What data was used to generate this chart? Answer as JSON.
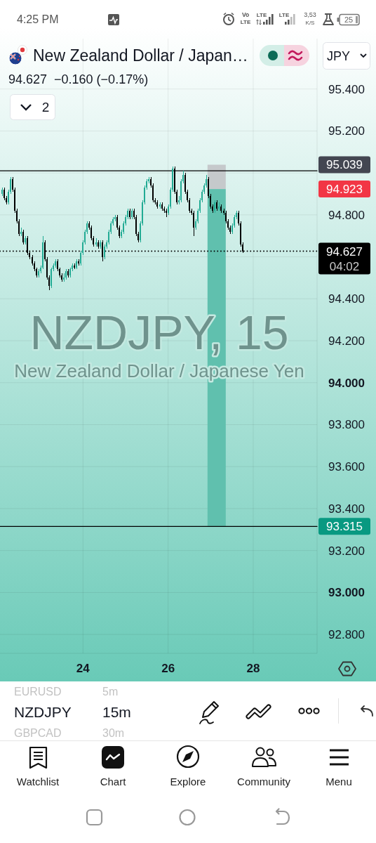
{
  "chart_data": {
    "type": "candlestick",
    "title": "New Zealand Dollar / Japan…",
    "subtitle": "94.627  −0.160 (−0.17%)",
    "x": [
      22.1,
      22.15,
      22.2,
      22.25,
      22.3,
      22.35,
      22.4,
      22.45,
      22.5,
      22.55,
      22.6,
      22.65,
      22.7,
      22.75,
      22.8,
      22.85,
      22.9,
      22.95,
      23,
      23.05,
      23.1,
      23.15,
      23.2,
      23.25,
      23.3,
      23.35,
      23.4,
      23.45,
      23.5,
      23.55,
      23.6,
      23.65,
      23.7,
      23.75,
      23.8,
      23.85,
      23.9,
      23.95,
      24,
      24.05,
      24.1,
      24.15,
      24.2,
      24.25,
      24.3,
      24.35,
      24.4,
      24.45,
      24.5,
      24.55,
      24.6,
      24.65,
      24.7,
      24.75,
      24.8,
      24.85,
      24.9,
      24.95,
      25,
      25.05,
      25.1,
      25.15,
      25.2,
      25.25,
      25.3,
      25.35,
      25.4,
      25.45,
      25.5,
      25.55,
      25.6,
      25.65,
      25.7,
      25.75,
      25.8,
      25.85,
      25.9,
      25.95,
      26,
      26.05,
      26.1,
      26.15,
      26.2,
      26.25,
      26.3,
      26.35,
      26.4,
      26.45,
      26.5,
      26.55,
      26.6,
      26.65,
      26.7,
      26.75,
      26.8,
      26.85,
      26.9,
      26.95,
      27,
      27.05,
      27.1,
      27.15,
      27.2,
      27.25,
      27.3,
      27.35,
      27.4,
      27.45,
      27.5,
      27.55,
      27.6,
      27.65,
      27.7,
      27.75
    ],
    "ohlc": [
      [
        94.9,
        94.93,
        94.89,
        94.92
      ],
      [
        94.92,
        94.93,
        94.87,
        94.88
      ],
      [
        94.88,
        94.89,
        94.85,
        94.86
      ],
      [
        94.86,
        94.92,
        94.85,
        94.91
      ],
      [
        94.91,
        94.98,
        94.9,
        94.97
      ],
      [
        94.97,
        94.98,
        94.91,
        94.92
      ],
      [
        94.92,
        94.93,
        94.81,
        94.82
      ],
      [
        94.82,
        94.83,
        94.76,
        94.77
      ],
      [
        94.77,
        94.78,
        94.7,
        94.71
      ],
      [
        94.71,
        94.74,
        94.7,
        94.72
      ],
      [
        94.72,
        94.73,
        94.66,
        94.67
      ],
      [
        94.67,
        94.7,
        94.66,
        94.69
      ],
      [
        94.69,
        94.7,
        94.61,
        94.62
      ],
      [
        94.62,
        94.63,
        94.59,
        94.6
      ],
      [
        94.6,
        94.61,
        94.56,
        94.57
      ],
      [
        94.57,
        94.58,
        94.53,
        94.54
      ],
      [
        94.54,
        94.55,
        94.5,
        94.51
      ],
      [
        94.51,
        94.54,
        94.5,
        94.53
      ],
      [
        94.53,
        94.56,
        94.52,
        94.55
      ],
      [
        94.55,
        94.7,
        94.54,
        94.67
      ],
      [
        94.67,
        94.68,
        94.58,
        94.59
      ],
      [
        94.59,
        94.6,
        94.49,
        94.5
      ],
      [
        94.5,
        94.51,
        94.44,
        94.46
      ],
      [
        94.46,
        94.55,
        94.45,
        94.54
      ],
      [
        94.54,
        94.57,
        94.53,
        94.56
      ],
      [
        94.56,
        94.59,
        94.55,
        94.58
      ],
      [
        94.58,
        94.59,
        94.53,
        94.54
      ],
      [
        94.54,
        94.55,
        94.5,
        94.51
      ],
      [
        94.51,
        94.52,
        94.48,
        94.49
      ],
      [
        94.49,
        94.52,
        94.48,
        94.5
      ],
      [
        94.5,
        94.54,
        94.49,
        94.53
      ],
      [
        94.53,
        94.54,
        94.5,
        94.51
      ],
      [
        94.51,
        94.55,
        94.5,
        94.54
      ],
      [
        94.54,
        94.57,
        94.53,
        94.56
      ],
      [
        94.56,
        94.57,
        94.54,
        94.55
      ],
      [
        94.55,
        94.59,
        94.54,
        94.58
      ],
      [
        94.58,
        94.59,
        94.56,
        94.57
      ],
      [
        94.57,
        94.63,
        94.56,
        94.62
      ],
      [
        94.62,
        94.68,
        94.61,
        94.67
      ],
      [
        94.67,
        94.73,
        94.66,
        94.72
      ],
      [
        94.72,
        94.77,
        94.71,
        94.76
      ],
      [
        94.76,
        94.77,
        94.73,
        94.74
      ],
      [
        94.74,
        94.75,
        94.68,
        94.69
      ],
      [
        94.69,
        94.7,
        94.65,
        94.66
      ],
      [
        94.66,
        94.69,
        94.65,
        94.67
      ],
      [
        94.67,
        94.68,
        94.64,
        94.65
      ],
      [
        94.65,
        94.68,
        94.64,
        94.67
      ],
      [
        94.67,
        94.68,
        94.58,
        94.6
      ],
      [
        94.6,
        94.66,
        94.59,
        94.65
      ],
      [
        94.65,
        94.68,
        94.64,
        94.67
      ],
      [
        94.67,
        94.73,
        94.66,
        94.72
      ],
      [
        94.72,
        94.77,
        94.71,
        94.76
      ],
      [
        94.76,
        94.79,
        94.75,
        94.78
      ],
      [
        94.78,
        94.8,
        94.77,
        94.79
      ],
      [
        94.79,
        94.8,
        94.73,
        94.74
      ],
      [
        94.74,
        94.75,
        94.69,
        94.7
      ],
      [
        94.7,
        94.73,
        94.69,
        94.72
      ],
      [
        94.72,
        94.77,
        94.71,
        94.76
      ],
      [
        94.76,
        94.8,
        94.75,
        94.79
      ],
      [
        94.79,
        94.83,
        94.78,
        94.82
      ],
      [
        94.82,
        94.83,
        94.78,
        94.79
      ],
      [
        94.79,
        94.83,
        94.78,
        94.82
      ],
      [
        94.82,
        94.83,
        94.78,
        94.79
      ],
      [
        94.79,
        94.8,
        94.7,
        94.71
      ],
      [
        94.71,
        94.72,
        94.67,
        94.68
      ],
      [
        94.68,
        94.77,
        94.67,
        94.76
      ],
      [
        94.76,
        94.87,
        94.75,
        94.86
      ],
      [
        94.86,
        94.94,
        94.85,
        94.93
      ],
      [
        94.93,
        94.97,
        94.92,
        94.96
      ],
      [
        94.96,
        94.98,
        94.95,
        94.97
      ],
      [
        94.97,
        94.98,
        94.93,
        94.94
      ],
      [
        94.94,
        94.95,
        94.86,
        94.87
      ],
      [
        94.87,
        94.88,
        94.85,
        94.86
      ],
      [
        94.86,
        94.87,
        94.83,
        94.84
      ],
      [
        94.84,
        94.86,
        94.83,
        94.85
      ],
      [
        94.85,
        94.86,
        94.82,
        94.83
      ],
      [
        94.83,
        94.84,
        94.81,
        94.82
      ],
      [
        94.82,
        94.83,
        94.79,
        94.81
      ],
      [
        94.81,
        94.85,
        94.8,
        94.84
      ],
      [
        94.84,
        94.93,
        94.83,
        94.92
      ],
      [
        94.92,
        95.03,
        94.91,
        95.02
      ],
      [
        95.02,
        95.03,
        94.9,
        94.91
      ],
      [
        94.91,
        94.92,
        94.85,
        94.86
      ],
      [
        94.86,
        94.89,
        94.85,
        94.87
      ],
      [
        94.87,
        94.97,
        94.86,
        94.96
      ],
      [
        94.96,
        95.01,
        94.95,
        94.99
      ],
      [
        94.99,
        95.0,
        94.9,
        94.91
      ],
      [
        94.91,
        94.92,
        94.86,
        94.87
      ],
      [
        94.87,
        94.88,
        94.81,
        94.82
      ],
      [
        94.82,
        94.83,
        94.8,
        94.81
      ],
      [
        94.81,
        94.82,
        94.7,
        94.74
      ],
      [
        94.74,
        94.78,
        94.73,
        94.77
      ],
      [
        94.77,
        94.83,
        94.76,
        94.82
      ],
      [
        94.82,
        94.88,
        94.81,
        94.87
      ],
      [
        94.87,
        94.92,
        94.86,
        94.91
      ],
      [
        94.91,
        94.95,
        94.9,
        94.94
      ],
      [
        94.94,
        94.99,
        94.93,
        94.97
      ],
      [
        94.97,
        94.98,
        94.88,
        94.89
      ],
      [
        94.89,
        94.9,
        94.83,
        94.84
      ],
      [
        94.84,
        94.85,
        94.81,
        94.82
      ],
      [
        94.82,
        94.87,
        94.81,
        94.86
      ],
      [
        94.86,
        94.87,
        94.82,
        94.83
      ],
      [
        94.83,
        94.86,
        94.82,
        94.84
      ],
      [
        94.84,
        94.85,
        94.81,
        94.82
      ],
      [
        94.82,
        94.83,
        94.8,
        94.81
      ],
      [
        94.81,
        94.82,
        94.76,
        94.77
      ],
      [
        94.77,
        94.78,
        94.73,
        94.74
      ],
      [
        94.74,
        94.75,
        94.71,
        94.72
      ],
      [
        94.72,
        94.76,
        94.71,
        94.75
      ],
      [
        94.75,
        94.8,
        94.74,
        94.79
      ],
      [
        94.79,
        94.82,
        94.78,
        94.81
      ],
      [
        94.81,
        94.82,
        94.75,
        94.76
      ],
      [
        94.76,
        94.77,
        94.65,
        94.66
      ],
      [
        94.66,
        94.67,
        94.62,
        94.627
      ]
    ],
    "series": [
      {
        "type": "bar",
        "x": [
          27.14
        ],
        "base": [
          94.923
        ],
        "values": [
          0.116
        ],
        "color": "#c5c9cb"
      },
      {
        "type": "bar",
        "x": [
          27.14
        ],
        "base": [
          93.315
        ],
        "values": [
          1.608
        ],
        "color": "#60c0ae"
      }
    ],
    "xlim": [
      22.05,
      29.5
    ],
    "xticks": [
      24,
      26,
      28
    ],
    "ylim": [
      92.71,
      95.64
    ],
    "yticks": [
      {
        "value": 95.4,
        "label": "95.400"
      },
      {
        "value": 95.2,
        "label": "95.200"
      },
      {
        "value": 95,
        "label": null
      },
      {
        "value": 94.8,
        "label": "94.800"
      },
      {
        "value": 94.6,
        "label": null
      },
      {
        "value": 94.4,
        "label": "94.400"
      },
      {
        "value": 94.2,
        "label": "94.200"
      },
      {
        "value": 94,
        "label": "94.000"
      },
      {
        "value": 93.8,
        "label": "93.800"
      },
      {
        "value": 93.6,
        "label": "93.600"
      },
      {
        "value": 93.4,
        "label": "93.400"
      },
      {
        "value": 93.2,
        "label": "93.200"
      },
      {
        "value": 93,
        "label": "93.000"
      },
      {
        "value": 92.8,
        "label": "92.800"
      }
    ],
    "grid": true,
    "ref_lines": [
      {
        "axis": "y",
        "value": 95.01,
        "color": "#000000"
      },
      {
        "axis": "y",
        "value": 93.315,
        "color": "#000000"
      },
      {
        "axis": "y",
        "value": 94.627,
        "label": "94.627",
        "color": "#000000",
        "line_style": "dotted"
      }
    ],
    "annotations": [
      "95.039",
      "94.923",
      "93.315",
      "04:02",
      "NZDJPY, 15",
      "New Zealand Dollar / Japanese Yen",
      "JPY",
      "2",
      "4:25 PM",
      "Vo",
      "LTE",
      "LTE",
      "LTE",
      "3,53",
      "K/S",
      "25",
      "EURUSD",
      "5m",
      "NZDJPY",
      "15m",
      "GBPCAD",
      "30m",
      "Watchlist",
      "Chart",
      "Explore",
      "Community",
      "Menu"
    ]
  }
}
